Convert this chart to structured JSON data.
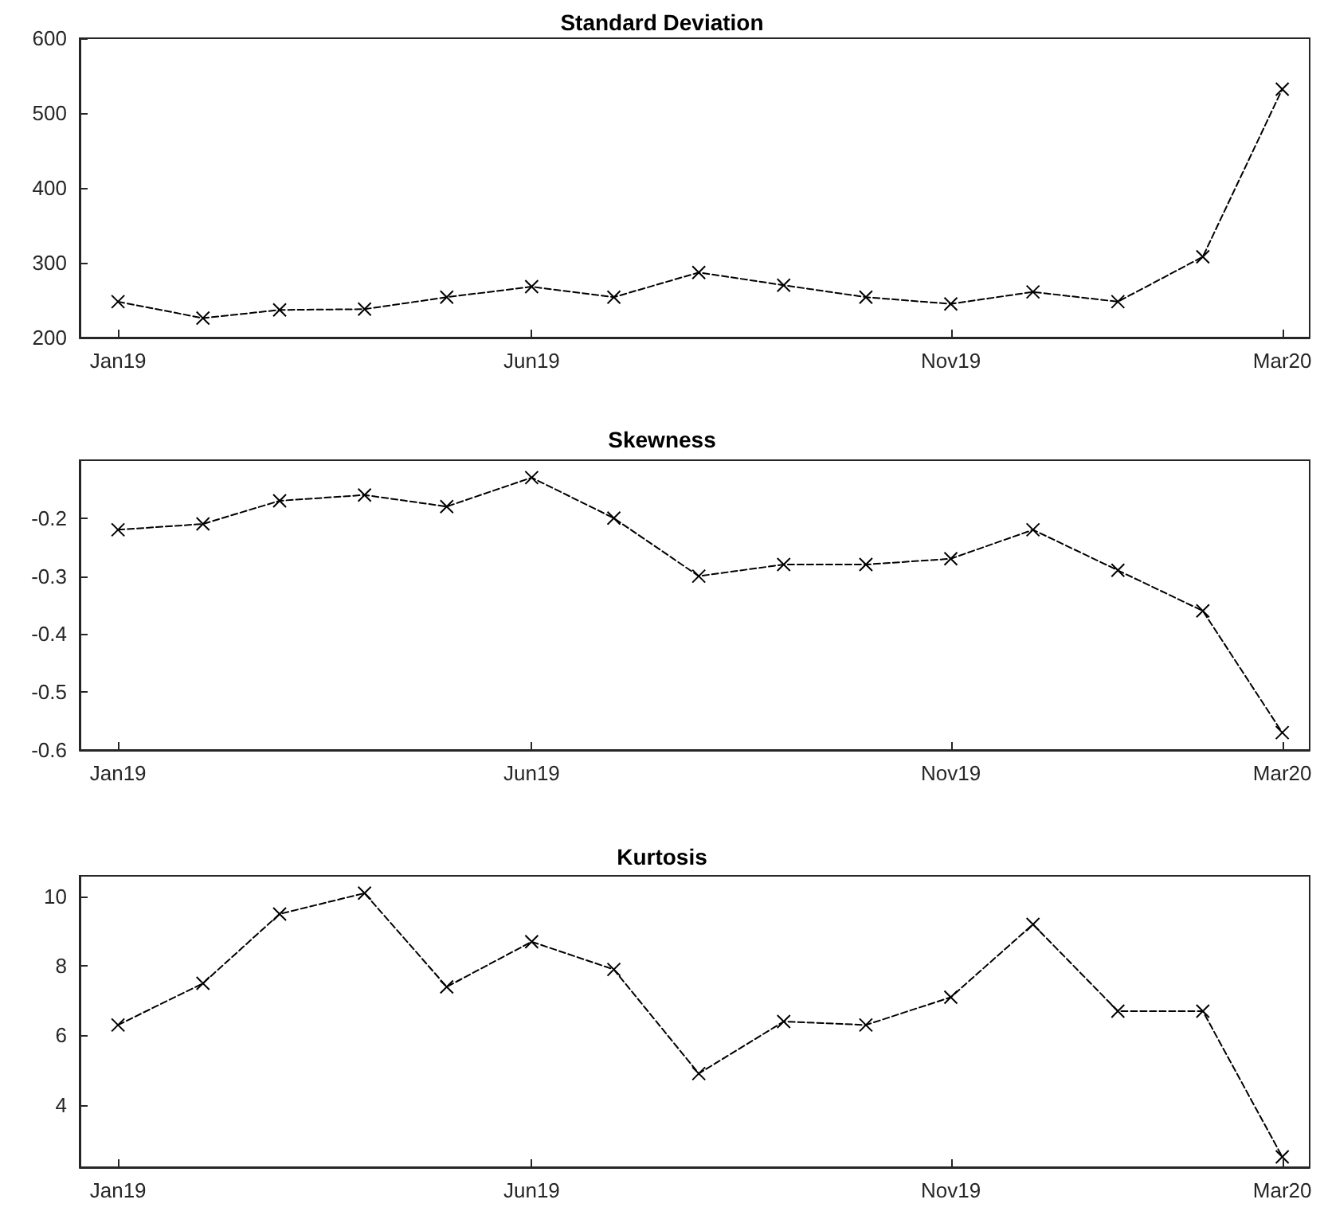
{
  "chart_data": [
    {
      "type": "line",
      "title": "Standard Deviation",
      "x": [
        "2019-01",
        "2019-02",
        "2019-03",
        "2019-04",
        "2019-05",
        "2019-06",
        "2019-07",
        "2019-08",
        "2019-09",
        "2019-10",
        "2019-11",
        "2019-12",
        "2020-01",
        "2020-02",
        "2020-03"
      ],
      "series": [
        {
          "color": "#000000",
          "values": [
            248,
            226,
            237,
            238,
            254,
            268,
            254,
            287,
            270,
            254,
            245,
            261,
            248,
            308,
            532
          ]
        }
      ],
      "xlim": [
        "2018-12-18",
        "2020-03-11"
      ],
      "xticks": [
        {
          "value": "2019-01",
          "label": "Jan19"
        },
        {
          "value": "2019-06",
          "label": "Jun19"
        },
        {
          "value": "2019-11",
          "label": "Nov19"
        },
        {
          "value": "2020-03",
          "label": "Mar20"
        }
      ],
      "ylim": [
        200,
        600
      ],
      "yticks": [
        200,
        300,
        400,
        500,
        600
      ],
      "grid": false,
      "marker": "cross",
      "line_style": "dashed"
    },
    {
      "type": "line",
      "title": "Skewness",
      "x": [
        "2019-01",
        "2019-02",
        "2019-03",
        "2019-04",
        "2019-05",
        "2019-06",
        "2019-07",
        "2019-08",
        "2019-09",
        "2019-10",
        "2019-11",
        "2019-12",
        "2020-01",
        "2020-02",
        "2020-03"
      ],
      "series": [
        {
          "color": "#000000",
          "values": [
            -0.22,
            -0.21,
            -0.17,
            -0.16,
            -0.18,
            -0.13,
            -0.2,
            -0.3,
            -0.28,
            -0.28,
            -0.27,
            -0.22,
            -0.29,
            -0.36,
            -0.57
          ]
        }
      ],
      "xlim": [
        "2018-12-18",
        "2020-03-11"
      ],
      "xticks": [
        {
          "value": "2019-01",
          "label": "Jan19"
        },
        {
          "value": "2019-06",
          "label": "Jun19"
        },
        {
          "value": "2019-11",
          "label": "Nov19"
        },
        {
          "value": "2020-03",
          "label": "Mar20"
        }
      ],
      "ylim": [
        -0.6,
        -0.1
      ],
      "yticks": [
        -0.6,
        -0.5,
        -0.4,
        -0.3,
        -0.2
      ],
      "grid": false,
      "marker": "cross",
      "line_style": "dashed"
    },
    {
      "type": "line",
      "title": "Kurtosis",
      "x": [
        "2019-01",
        "2019-02",
        "2019-03",
        "2019-04",
        "2019-05",
        "2019-06",
        "2019-07",
        "2019-08",
        "2019-09",
        "2019-10",
        "2019-11",
        "2019-12",
        "2020-01",
        "2020-02",
        "2020-03"
      ],
      "series": [
        {
          "color": "#000000",
          "values": [
            6.3,
            7.5,
            9.5,
            10.1,
            7.4,
            8.7,
            7.9,
            4.9,
            6.4,
            6.3,
            7.1,
            9.2,
            6.7,
            6.7,
            2.5
          ]
        }
      ],
      "xlim": [
        "2018-12-18",
        "2020-03-11"
      ],
      "xticks": [
        {
          "value": "2019-01",
          "label": "Jan19"
        },
        {
          "value": "2019-06",
          "label": "Jun19"
        },
        {
          "value": "2019-11",
          "label": "Nov19"
        },
        {
          "value": "2020-03",
          "label": "Mar20"
        }
      ],
      "ylim": [
        2.2,
        10.6
      ],
      "yticks": [
        4,
        6,
        8,
        10
      ],
      "grid": false,
      "marker": "cross",
      "line_style": "dashed"
    }
  ]
}
